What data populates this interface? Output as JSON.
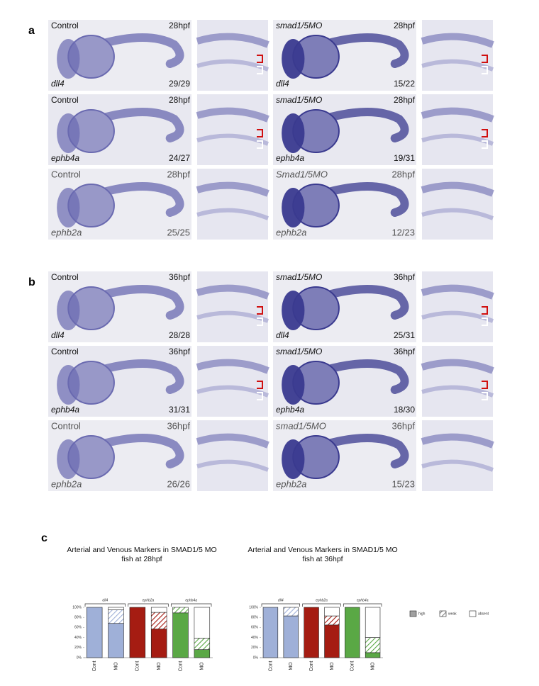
{
  "panels": [
    {
      "letter": "a",
      "rows": [
        {
          "control": {
            "treatment": "Control",
            "stage": "28hpf",
            "gene": "dll4",
            "count": "29/29"
          },
          "mo": {
            "treatment": "smad1/5MO",
            "stage": "28hpf",
            "gene": "dll4",
            "count": "15/22"
          }
        },
        {
          "control": {
            "treatment": "Control",
            "stage": "28hpf",
            "gene": "ephb4a",
            "count": "24/27"
          },
          "mo": {
            "treatment": "smad1/5MO",
            "stage": "28hpf",
            "gene": "ephb4a",
            "count": "19/31"
          }
        },
        {
          "control": {
            "treatment": "Control",
            "stage": "28hpf",
            "gene": "ephb2a",
            "count": "25/25"
          },
          "mo": {
            "treatment": "Smad1/5MO",
            "stage": "28hpf",
            "gene": "ephb2a",
            "count": "12/23"
          }
        }
      ]
    },
    {
      "letter": "b",
      "rows": [
        {
          "control": {
            "treatment": "Control",
            "stage": "36hpf",
            "gene": "dll4",
            "count": "28/28"
          },
          "mo": {
            "treatment": "smad1/5MO",
            "stage": "36hpf",
            "gene": "dll4",
            "count": "25/31"
          }
        },
        {
          "control": {
            "treatment": "Control",
            "stage": "36hpf",
            "gene": "ephb4a",
            "count": "31/31"
          },
          "mo": {
            "treatment": "smad1/5MO",
            "stage": "36hpf",
            "gene": "ephb4a",
            "count": "18/30"
          }
        },
        {
          "control": {
            "treatment": "Control",
            "stage": "36hpf",
            "gene": "ephb2a",
            "count": "26/26"
          },
          "mo": {
            "treatment": "smad1/5MO",
            "stage": "36hpf",
            "gene": "ephb2a",
            "count": "15/23"
          }
        }
      ]
    }
  ],
  "panel_c_letter": "c",
  "chart_data": [
    {
      "type": "stacked_bar",
      "title": "Arterial and Venous Markers in SMAD1/5 MO fish at 28hpf",
      "categories": [
        "Cont",
        "MO",
        "Cont",
        "MO",
        "Cont",
        "MO"
      ],
      "groups": [
        "dll4",
        "ephb2a",
        "ephb4a"
      ],
      "bar_colors": [
        "#9fb0d8",
        "#9fb0d8",
        "#a51c12",
        "#a51c12",
        "#5aa845",
        "#5aa845"
      ],
      "series": [
        {
          "name": "high",
          "color": "#a0a0a0",
          "values": [
            100,
            68,
            100,
            57,
            89,
            16
          ]
        },
        {
          "name": "weak",
          "color": "#a0a0a0",
          "hatch": true,
          "values": [
            0,
            27,
            0,
            33,
            11,
            23
          ]
        },
        {
          "name": "absent",
          "color": "#ffffff",
          "values": [
            0,
            5,
            0,
            10,
            0,
            61
          ]
        }
      ],
      "ylim": [
        0,
        100
      ],
      "yticks": [
        {
          "value": 0,
          "label": "0%"
        },
        {
          "value": 20,
          "label": "20%"
        },
        {
          "value": 40,
          "label": "40%"
        },
        {
          "value": 60,
          "label": "60%"
        },
        {
          "value": 80,
          "label": "80%"
        },
        {
          "value": 100,
          "label": "100%"
        }
      ]
    },
    {
      "type": "stacked_bar",
      "title": "Arterial and Venous Markers in SMAD1/5 MO fish at 36hpf",
      "categories": [
        "Cont",
        "MO",
        "Cont",
        "MO",
        "Cont",
        "MO"
      ],
      "groups": [
        "dll4",
        "ephb2a",
        "ephb4a"
      ],
      "bar_colors": [
        "#9fb0d8",
        "#9fb0d8",
        "#a51c12",
        "#a51c12",
        "#5aa845",
        "#5aa845"
      ],
      "series": [
        {
          "name": "high",
          "color": "#a0a0a0",
          "values": [
            100,
            83,
            100,
            65,
            100,
            10
          ]
        },
        {
          "name": "weak",
          "color": "#a0a0a0",
          "hatch": true,
          "values": [
            0,
            17,
            0,
            18,
            0,
            30
          ]
        },
        {
          "name": "absent",
          "color": "#ffffff",
          "values": [
            0,
            0,
            0,
            17,
            0,
            60
          ]
        }
      ],
      "ylim": [
        0,
        100
      ],
      "yticks": [
        {
          "value": 0,
          "label": "0%"
        },
        {
          "value": 20,
          "label": "20%"
        },
        {
          "value": 40,
          "label": "40%"
        },
        {
          "value": 60,
          "label": "60%"
        },
        {
          "value": 80,
          "label": "80%"
        },
        {
          "value": 100,
          "label": "100%"
        }
      ]
    }
  ]
}
